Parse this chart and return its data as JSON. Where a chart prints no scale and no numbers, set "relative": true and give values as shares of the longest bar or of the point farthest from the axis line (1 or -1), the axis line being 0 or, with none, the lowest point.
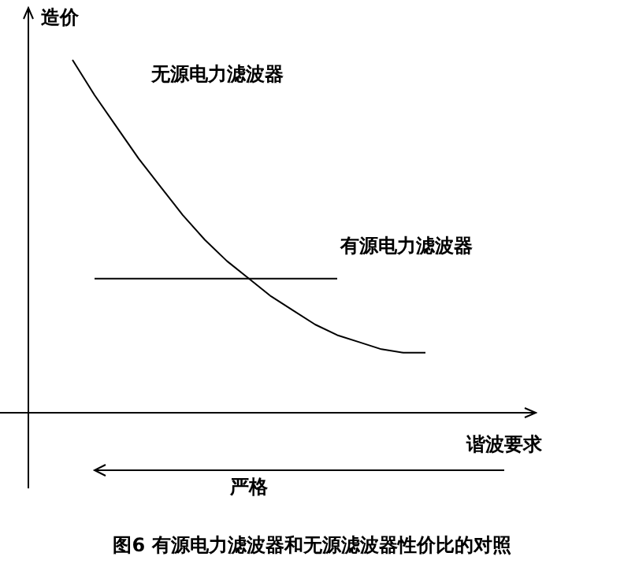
{
  "chart_data": {
    "type": "line",
    "title": "图6 有源电力滤波器和无源滤波器性价比的对照",
    "xlabel": "谐波要求",
    "ylabel": "造价",
    "relative": true,
    "legend": false,
    "marker": "none",
    "annotations": [
      "严格"
    ],
    "categories": [
      null,
      null,
      null,
      null,
      null,
      null,
      null,
      null,
      null,
      null,
      null,
      null,
      null,
      null,
      null,
      null,
      null,
      null,
      null,
      null,
      null,
      null,
      null,
      null
    ],
    "series": [
      {
        "name": "无源电力滤波器",
        "color": "#000000",
        "values": [
          null,
          null,
          1.0,
          0.9,
          0.81,
          0.72,
          0.64,
          0.56,
          0.49,
          0.43,
          0.38,
          0.33,
          0.29,
          0.25,
          0.22,
          0.2,
          0.18,
          0.17,
          0.17,
          null,
          null,
          null,
          null,
          null
        ]
      },
      {
        "name": "有源电力滤波器",
        "color": "#000000",
        "values": [
          null,
          null,
          null,
          0.38,
          0.38,
          0.38,
          0.38,
          0.38,
          0.38,
          0.38,
          0.38,
          0.38,
          0.38,
          0.38,
          0.38,
          null,
          null,
          null,
          null,
          null,
          null,
          null,
          null,
          null
        ]
      }
    ]
  }
}
